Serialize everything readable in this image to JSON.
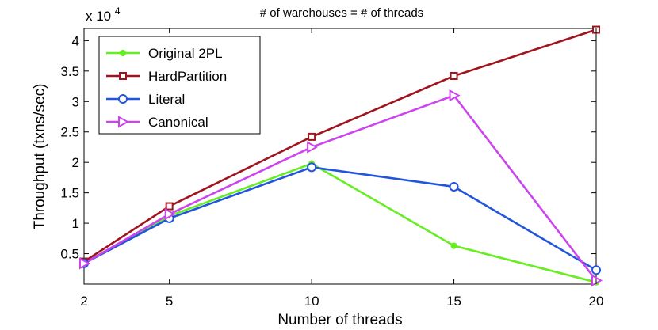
{
  "chart_data": {
    "type": "line",
    "title": "# of warehouses = # of threads",
    "xlabel": "Number of threads",
    "ylabel": "Throughput (txns/sec)",
    "y_exponent_label": {
      "base": "x 10",
      "exp": "4"
    },
    "x": [
      2,
      5,
      10,
      15,
      20
    ],
    "xlim": [
      2,
      20
    ],
    "ylim": [
      0,
      42000
    ],
    "xticks": [
      2,
      5,
      10,
      15,
      20
    ],
    "yticks": [
      5000,
      10000,
      15000,
      20000,
      25000,
      30000,
      35000,
      40000
    ],
    "ytick_labels": [
      "0.5",
      "1",
      "1.5",
      "2",
      "2.5",
      "3",
      "3.5",
      "4"
    ],
    "grid": false,
    "legend_position": "top-left",
    "series": [
      {
        "name": "Original 2PL",
        "color": "#66ee22",
        "marker": "dot",
        "values": [
          3500,
          11200,
          19800,
          6300,
          300
        ]
      },
      {
        "name": "HardPartition",
        "color": "#a0141e",
        "marker": "square",
        "values": [
          3700,
          12800,
          24200,
          34200,
          41800
        ]
      },
      {
        "name": "Literal",
        "color": "#2255dd",
        "marker": "circle",
        "values": [
          3400,
          10800,
          19200,
          16000,
          2300
        ]
      },
      {
        "name": "Canonical",
        "color": "#cc44ee",
        "marker": "triangle-right",
        "values": [
          3400,
          11500,
          22500,
          31000,
          600
        ]
      }
    ]
  }
}
